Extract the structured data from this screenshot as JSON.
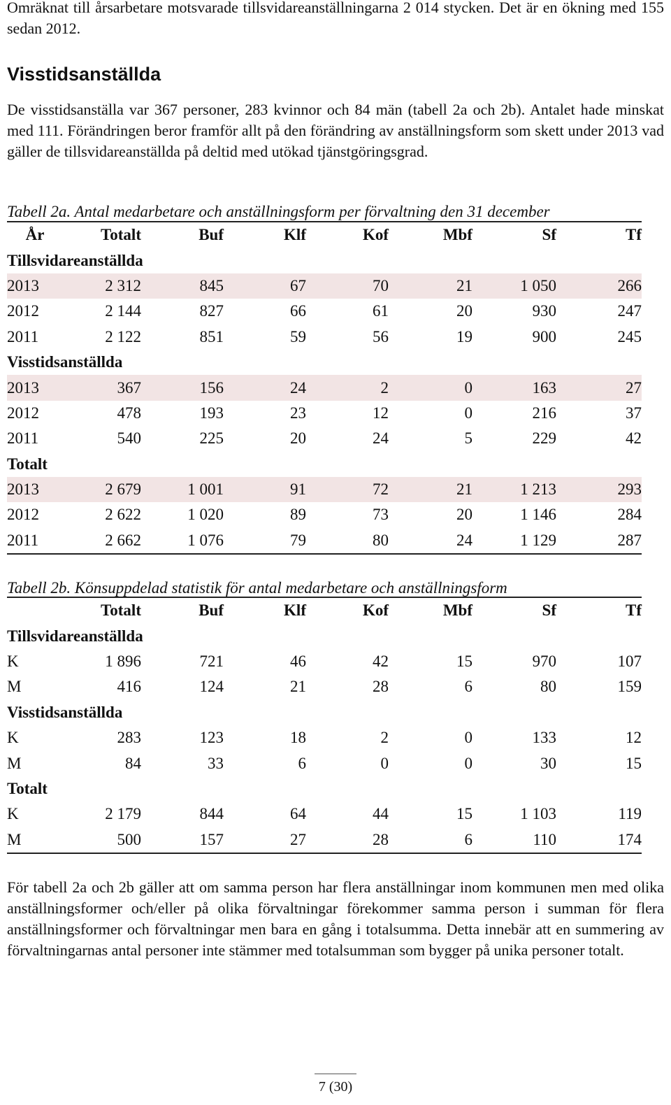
{
  "intro": "Omräknat till årsarbetare motsvarade tillsvidareanställningarna 2 014 stycken. Det är en ökning med 155 sedan 2012.",
  "section_heading": "Visstidsanställda",
  "visstid_paragraph": "De visstidsanställa var 367 personer, 283 kvinnor och 84 män (tabell 2a och 2b). Antalet hade minskat med 111. Förändringen beror framför allt på den förändring av anställnings­form som skett under 2013 vad gäller de tillsvidareanställda på deltid med utökad tjänstgö­ringsgrad.",
  "table_a": {
    "caption": "Tabell 2a. Antal medarbetare och anställningsform per förvaltning den 31 december",
    "headers": [
      "År",
      "Totalt",
      "Buf",
      "Klf",
      "Kof",
      "Mbf",
      "Sf",
      "Tf"
    ],
    "sections": [
      {
        "label": "Tillsvidareanställda",
        "rows": [
          [
            "2013",
            "2 312",
            "845",
            "67",
            "70",
            "21",
            "1 050",
            "266"
          ],
          [
            "2012",
            "2 144",
            "827",
            "66",
            "61",
            "20",
            "930",
            "247"
          ],
          [
            "2011",
            "2 122",
            "851",
            "59",
            "56",
            "19",
            "900",
            "245"
          ]
        ]
      },
      {
        "label": "Visstidsanställda",
        "rows": [
          [
            "2013",
            "367",
            "156",
            "24",
            "2",
            "0",
            "163",
            "27"
          ],
          [
            "2012",
            "478",
            "193",
            "23",
            "12",
            "0",
            "216",
            "37"
          ],
          [
            "2011",
            "540",
            "225",
            "20",
            "24",
            "5",
            "229",
            "42"
          ]
        ]
      },
      {
        "label": "Totalt",
        "rows": [
          [
            "2013",
            "2 679",
            "1 001",
            "91",
            "72",
            "21",
            "1 213",
            "293"
          ],
          [
            "2012",
            "2 622",
            "1 020",
            "89",
            "73",
            "20",
            "1 146",
            "284"
          ],
          [
            "2011",
            "2 662",
            "1 076",
            "79",
            "80",
            "24",
            "1 129",
            "287"
          ]
        ]
      }
    ]
  },
  "table_b": {
    "caption": "Tabell 2b. Könsuppdelad statistik för antal medarbetare och anställningsform",
    "headers": [
      "",
      "Totalt",
      "Buf",
      "Klf",
      "Kof",
      "Mbf",
      "Sf",
      "Tf"
    ],
    "sections": [
      {
        "label": "Tillsvidareanställda",
        "rows": [
          [
            "K",
            "1 896",
            "721",
            "46",
            "42",
            "15",
            "970",
            "107"
          ],
          [
            "M",
            "416",
            "124",
            "21",
            "28",
            "6",
            "80",
            "159"
          ]
        ]
      },
      {
        "label": "Visstidsanställda",
        "rows": [
          [
            "K",
            "283",
            "123",
            "18",
            "2",
            "0",
            "133",
            "12"
          ],
          [
            "M",
            "84",
            "33",
            "6",
            "0",
            "0",
            "30",
            "15"
          ]
        ]
      },
      {
        "label": "Totalt",
        "rows": [
          [
            "K",
            "2 179",
            "844",
            "64",
            "44",
            "15",
            "1 103",
            "119"
          ],
          [
            "M",
            "500",
            "157",
            "27",
            "28",
            "6",
            "110",
            "174"
          ]
        ]
      }
    ]
  },
  "footnote": "För tabell 2a och 2b gäller att om samma person har flera anställningar inom kommunen men med olika anställningsformer och/eller på olika förvaltningar förekommer samma person i summan för flera anställningsformer och förvaltningar men bara en gång i total­summa. Detta innebär att en summering av förvaltningarnas antal personer inte stämmer med totalsumman som bygger på unika personer totalt.",
  "page_number": "7 (30)",
  "colors": {
    "highlight_row": "#f2e4e4"
  }
}
